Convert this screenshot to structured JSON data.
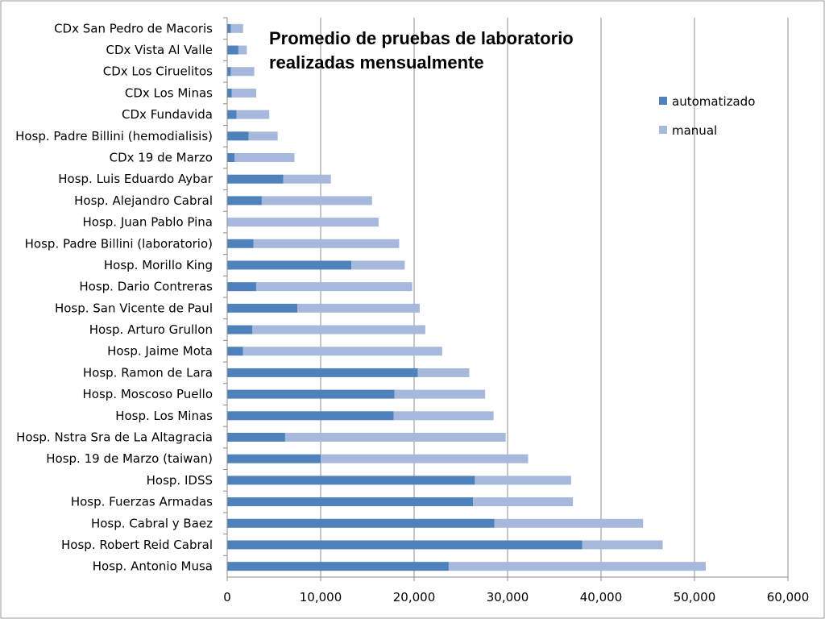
{
  "chart_data": {
    "type": "bar",
    "orientation": "horizontal",
    "stacked": true,
    "title_lines": [
      "Promedio de pruebas de laboratorio",
      "realizadas mensualmente"
    ],
    "categories": [
      "CDx San Pedro de Macoris",
      "CDx Vista Al Valle",
      "CDx Los Ciruelitos",
      "CDx Los Minas",
      "CDx Fundavida",
      "Hosp. Padre Billini (hemodialisis)",
      "CDx 19 de Marzo",
      "Hosp. Luis Eduardo Aybar",
      "Hosp. Alejandro Cabral",
      "Hosp. Juan Pablo Pina",
      "Hosp. Padre Billini (laboratorio)",
      "Hosp. Morillo King",
      "Hosp. Dario Contreras",
      "Hosp. San Vicente de Paul",
      "Hosp. Arturo Grullon",
      "Hosp. Jaime Mota",
      "Hosp. Ramon de Lara",
      "Hosp. Moscoso Puello",
      "Hosp. Los Minas",
      "Hosp. Nstra Sra de La Altagracia",
      "Hosp. 19 de Marzo (taiwan)",
      "Hosp. IDSS",
      "Hosp. Fuerzas Armadas",
      "Hosp. Cabral y Baez",
      "Hosp. Robert Reid Cabral",
      "Hosp. Antonio Musa"
    ],
    "series": [
      {
        "name": "automatizado",
        "color": "#4f81bd",
        "values": [
          400,
          1200,
          400,
          500,
          1000,
          2300,
          800,
          6000,
          3700,
          0,
          2800,
          13300,
          3100,
          7500,
          2700,
          1700,
          20400,
          17900,
          17800,
          6200,
          10000,
          26500,
          26300,
          28600,
          38000,
          23700
        ]
      },
      {
        "name": "manual",
        "color": "#a6b9dd",
        "values": [
          1300,
          900,
          2500,
          2600,
          3500,
          3100,
          6400,
          5100,
          11800,
          16200,
          15600,
          5700,
          16700,
          13100,
          18500,
          21300,
          5500,
          9700,
          10700,
          23600,
          22200,
          10300,
          10700,
          15900,
          8600,
          27500
        ]
      }
    ],
    "xlim": [
      0,
      60000
    ],
    "xticks": [
      0,
      10000,
      20000,
      30000,
      40000,
      50000,
      60000
    ],
    "xtick_labels": [
      "0",
      "10,000",
      "20,000",
      "30,000",
      "40,000",
      "50,000",
      "60,000"
    ],
    "grid": true,
    "legend_position": "top-right"
  }
}
